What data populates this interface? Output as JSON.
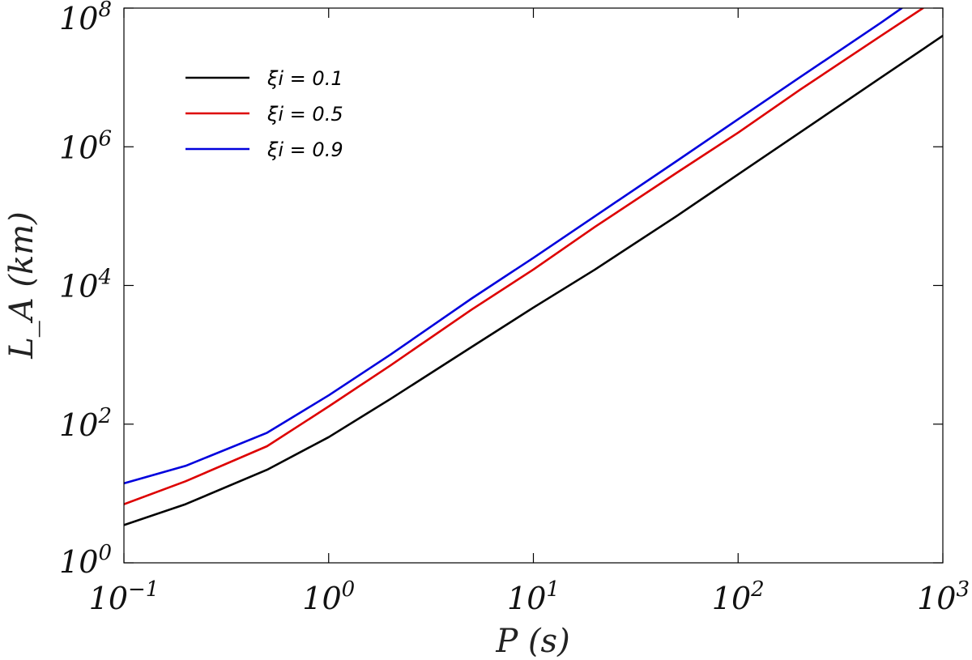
{
  "chart_data": {
    "type": "line",
    "title": "",
    "xlabel": "P (s)",
    "ylabel": "L_A (km)",
    "xscale": "log",
    "yscale": "log",
    "xlim": [
      0.1,
      1000
    ],
    "ylim": [
      1,
      100000000
    ],
    "x_ticks": [
      {
        "base": "10",
        "exp": "−1"
      },
      {
        "base": "10",
        "exp": "0"
      },
      {
        "base": "10",
        "exp": "1"
      },
      {
        "base": "10",
        "exp": "2"
      },
      {
        "base": "10",
        "exp": "3"
      }
    ],
    "y_ticks": [
      {
        "base": "10",
        "exp": "0"
      },
      {
        "base": "10",
        "exp": "2"
      },
      {
        "base": "10",
        "exp": "4"
      },
      {
        "base": "10",
        "exp": "6"
      },
      {
        "base": "10",
        "exp": "8"
      }
    ],
    "grid": false,
    "legend_position": "top-left",
    "series": [
      {
        "name": "ξi = 0.1",
        "color": "#000000",
        "x": [
          0.1,
          0.2,
          0.5,
          1,
          2,
          5,
          10,
          20,
          50,
          100,
          200,
          500,
          1000
        ],
        "y": [
          3.5,
          7,
          22,
          65,
          230,
          1300,
          4800,
          17000,
          100000,
          400000,
          1600000,
          10000000,
          40000000
        ]
      },
      {
        "name": "ξi = 0.5",
        "color": "#dd0000",
        "x": [
          0.1,
          0.2,
          0.5,
          1,
          2,
          5,
          10,
          20,
          50,
          100,
          200,
          500,
          800
        ],
        "y": [
          7,
          15,
          48,
          180,
          700,
          4500,
          17000,
          70000,
          420000,
          1600000,
          6600000,
          40000000,
          100000000
        ]
      },
      {
        "name": "ξi = 0.9",
        "color": "#0000dd",
        "x": [
          0.1,
          0.2,
          0.5,
          1,
          2,
          5,
          10,
          20,
          50,
          100,
          200,
          500,
          630
        ],
        "y": [
          14,
          25,
          75,
          260,
          1000,
          6500,
          25000,
          100000,
          620000,
          2500000,
          10000000,
          62000000,
          100000000
        ]
      }
    ]
  }
}
